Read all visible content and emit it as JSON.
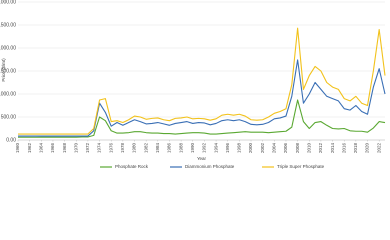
{
  "chart_data": {
    "type": "line",
    "x_label": "Year",
    "y_label": "Price ($/mt)",
    "x": [
      1960,
      1961,
      1962,
      1963,
      1964,
      1965,
      1966,
      1967,
      1968,
      1969,
      1970,
      1971,
      1972,
      1973,
      1974,
      1975,
      1976,
      1977,
      1978,
      1979,
      1980,
      1981,
      1982,
      1983,
      1984,
      1985,
      1986,
      1987,
      1988,
      1989,
      1990,
      1991,
      1992,
      1993,
      1994,
      1995,
      1996,
      1997,
      1998,
      1999,
      2000,
      2001,
      2002,
      2003,
      2004,
      2005,
      2006,
      2007,
      2008,
      2009,
      2010,
      2011,
      2012,
      2013,
      2014,
      2015,
      2016,
      2017,
      2018,
      2019,
      2020,
      2021,
      2022,
      2023
    ],
    "series": [
      {
        "name": "Phosphate Rock",
        "color": "#5aa832",
        "values": [
          60,
          60,
          60,
          60,
          62,
          62,
          62,
          62,
          62,
          62,
          62,
          65,
          65,
          100,
          500,
          420,
          200,
          150,
          150,
          160,
          180,
          180,
          160,
          150,
          150,
          140,
          140,
          130,
          140,
          150,
          160,
          160,
          150,
          130,
          130,
          140,
          150,
          160,
          170,
          180,
          170,
          170,
          170,
          160,
          170,
          180,
          190,
          280,
          870,
          400,
          250,
          380,
          400,
          320,
          250,
          240,
          250,
          200,
          190,
          190,
          170,
          260,
          400,
          380
        ]
      },
      {
        "name": "Diammonium Phosphate",
        "color": "#3a6fb5",
        "values": [
          85,
          85,
          85,
          85,
          85,
          85,
          85,
          85,
          85,
          85,
          85,
          85,
          85,
          200,
          800,
          600,
          300,
          380,
          320,
          380,
          440,
          400,
          350,
          360,
          380,
          350,
          320,
          360,
          380,
          400,
          360,
          380,
          370,
          330,
          360,
          420,
          440,
          420,
          440,
          400,
          340,
          330,
          340,
          380,
          460,
          480,
          520,
          950,
          1740,
          800,
          1000,
          1250,
          1100,
          950,
          900,
          850,
          680,
          650,
          750,
          620,
          560,
          1150,
          1550,
          1000
        ]
      },
      {
        "name": "Triple Super Phosphate",
        "color": "#f2c21b",
        "values": [
          130,
          130,
          130,
          130,
          130,
          130,
          130,
          130,
          130,
          130,
          130,
          130,
          130,
          250,
          870,
          900,
          400,
          420,
          380,
          440,
          520,
          500,
          450,
          470,
          480,
          440,
          420,
          470,
          480,
          500,
          460,
          470,
          460,
          430,
          460,
          540,
          560,
          540,
          560,
          520,
          440,
          430,
          440,
          500,
          580,
          620,
          680,
          1200,
          2430,
          1100,
          1400,
          1600,
          1500,
          1250,
          1150,
          1100,
          900,
          850,
          950,
          800,
          750,
          1500,
          2400,
          1400
        ]
      }
    ],
    "xlim": [
      1960,
      2023
    ],
    "xticks": [
      1960,
      1962,
      1964,
      1966,
      1968,
      1970,
      1972,
      1974,
      1976,
      1978,
      1980,
      1982,
      1984,
      1986,
      1988,
      1990,
      1992,
      1994,
      1996,
      1998,
      2000,
      2002,
      2004,
      2006,
      2008,
      2010,
      2012,
      2014,
      2016,
      2018,
      2020,
      2022
    ],
    "ylim": [
      0,
      3000
    ],
    "yticks": [
      {
        "value": 0,
        "label": "0.00"
      },
      {
        "value": 500,
        "label": "500.00"
      },
      {
        "value": 1000,
        "label": "1,000.00"
      },
      {
        "value": 1500,
        "label": "1,500.00"
      },
      {
        "value": 2000,
        "label": "2,000.00"
      },
      {
        "value": 2500,
        "label": "2,500.00"
      },
      {
        "value": 3000,
        "label": "3,000.00"
      }
    ],
    "grid": true
  }
}
